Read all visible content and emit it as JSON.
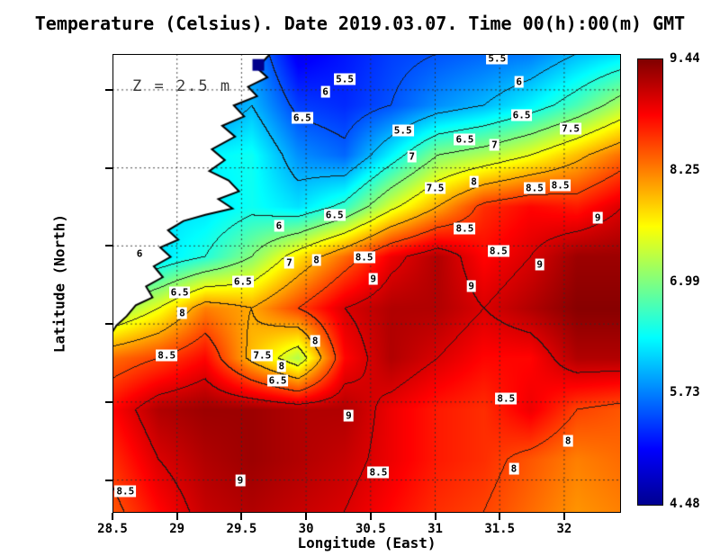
{
  "chart_data": {
    "type": "heatmap",
    "title": "Temperature (Celsius). Date 2019.03.07. Time 00(h):00(m) GMT",
    "annotation": "Z = 2.5 m",
    "xlabel": "Longitude (East)",
    "ylabel": "Latitude (North)",
    "units": "Celsius",
    "xlim": [
      28.5,
      32.44
    ],
    "ylim": [
      42.79,
      45.73
    ],
    "xticks": [
      "28.5",
      "29",
      "29.5",
      "30",
      "30.5",
      "31",
      "31.5",
      "32"
    ],
    "yticks": [
      "45.5",
      "45",
      "44.5",
      "44",
      "43.5",
      "43"
    ],
    "grid_on": true,
    "land_color": "#ffffff",
    "coast_color": "#000000",
    "marker": {
      "lon": 29.63,
      "lat": 45.66,
      "color": "#00008b",
      "size": 13
    },
    "colorbar": {
      "position": "right",
      "ticks": [
        "9.44",
        "8.25",
        "6.99",
        "5.73",
        "4.48"
      ],
      "vmin": 4.48,
      "vmax": 9.44,
      "colormap": [
        {
          "f": 0.0,
          "c": "#000090"
        },
        {
          "f": 0.125,
          "c": "#0000ff"
        },
        {
          "f": 0.375,
          "c": "#00ffff"
        },
        {
          "f": 0.625,
          "c": "#ffff00"
        },
        {
          "f": 0.875,
          "c": "#ff0000"
        },
        {
          "f": 1.0,
          "c": "#800000"
        }
      ]
    },
    "contour_interval": 0.5,
    "contour_levels": [
      5.5,
      6,
      6.5,
      7,
      7.5,
      8,
      8.5,
      9
    ],
    "grid": {
      "lons": [
        28.5,
        28.86,
        29.22,
        29.58,
        29.94,
        30.3,
        30.66,
        31.02,
        31.38,
        31.74,
        32.1,
        32.45
      ],
      "lats": [
        45.73,
        45.4,
        45.08,
        44.75,
        44.43,
        44.1,
        43.78,
        43.45,
        43.13,
        42.8
      ],
      "values": [
        [
          5.5,
          5.5,
          5.5,
          5.8,
          5.0,
          5.2,
          5.4,
          5.5,
          5.6,
          5.7,
          6.0,
          6.2
        ],
        [
          5.6,
          5.6,
          5.6,
          6.0,
          5.4,
          5.3,
          5.5,
          5.8,
          6.0,
          6.3,
          6.7,
          7.2
        ],
        [
          6.3,
          6.3,
          6.3,
          6.4,
          5.8,
          5.6,
          6.3,
          7.0,
          7.2,
          7.5,
          7.9,
          8.3
        ],
        [
          6.2,
          6.2,
          6.2,
          6.4,
          6.2,
          6.6,
          7.4,
          8.0,
          8.6,
          8.8,
          8.7,
          9.0
        ],
        [
          6.0,
          6.2,
          6.5,
          7.0,
          7.7,
          8.3,
          8.9,
          9.2,
          8.8,
          9.0,
          9.3,
          9.3
        ],
        [
          7.0,
          7.5,
          8.2,
          8.0,
          8.5,
          9.0,
          9.2,
          9.2,
          9.0,
          9.2,
          9.4,
          9.4
        ],
        [
          8.3,
          8.5,
          8.8,
          7.9,
          7.2,
          8.8,
          9.2,
          9.0,
          8.8,
          8.8,
          9.2,
          9.2
        ],
        [
          8.8,
          9.2,
          9.3,
          9.3,
          9.2,
          9.2,
          8.9,
          8.7,
          8.6,
          8.9,
          8.5,
          8.4
        ],
        [
          8.6,
          9.0,
          9.2,
          9.3,
          9.2,
          9.1,
          8.9,
          8.7,
          8.6,
          8.4,
          8.2,
          8.3
        ],
        [
          8.4,
          8.8,
          9.1,
          9.2,
          9.1,
          9.0,
          8.8,
          8.6,
          8.5,
          8.3,
          8.1,
          8.2
        ]
      ]
    },
    "contour_labels": [
      {
        "lon": 31.48,
        "lat": 45.7,
        "t": "5.5"
      },
      {
        "lon": 30.3,
        "lat": 45.57,
        "t": "5.5"
      },
      {
        "lon": 30.15,
        "lat": 45.49,
        "t": "6"
      },
      {
        "lon": 31.65,
        "lat": 45.55,
        "t": "6"
      },
      {
        "lon": 31.67,
        "lat": 45.34,
        "t": "6.5"
      },
      {
        "lon": 29.97,
        "lat": 45.32,
        "t": "6.5"
      },
      {
        "lon": 30.75,
        "lat": 45.24,
        "t": "5.5"
      },
      {
        "lon": 32.05,
        "lat": 45.25,
        "t": "7.5"
      },
      {
        "lon": 31.23,
        "lat": 45.18,
        "t": "6.5"
      },
      {
        "lon": 31.46,
        "lat": 45.15,
        "t": "7"
      },
      {
        "lon": 30.82,
        "lat": 45.07,
        "t": "7"
      },
      {
        "lon": 31.0,
        "lat": 44.87,
        "t": "7.5"
      },
      {
        "lon": 31.3,
        "lat": 44.91,
        "t": "8"
      },
      {
        "lon": 31.77,
        "lat": 44.87,
        "t": "8.5"
      },
      {
        "lon": 31.97,
        "lat": 44.89,
        "t": "8.5"
      },
      {
        "lon": 32.26,
        "lat": 44.68,
        "t": "9"
      },
      {
        "lon": 30.22,
        "lat": 44.7,
        "t": "6.5"
      },
      {
        "lon": 29.79,
        "lat": 44.63,
        "t": "6"
      },
      {
        "lon": 31.23,
        "lat": 44.61,
        "t": "8.5"
      },
      {
        "lon": 31.49,
        "lat": 44.47,
        "t": "8.5"
      },
      {
        "lon": 28.71,
        "lat": 44.45,
        "t": "6"
      },
      {
        "lon": 29.87,
        "lat": 44.39,
        "t": "7"
      },
      {
        "lon": 30.08,
        "lat": 44.41,
        "t": "8"
      },
      {
        "lon": 30.45,
        "lat": 44.43,
        "t": "8.5"
      },
      {
        "lon": 31.81,
        "lat": 44.38,
        "t": "9"
      },
      {
        "lon": 29.51,
        "lat": 44.27,
        "t": "6.5"
      },
      {
        "lon": 30.52,
        "lat": 44.29,
        "t": "9"
      },
      {
        "lon": 31.28,
        "lat": 44.24,
        "t": "9"
      },
      {
        "lon": 29.02,
        "lat": 44.2,
        "t": "6.5"
      },
      {
        "lon": 29.04,
        "lat": 44.07,
        "t": "8"
      },
      {
        "lon": 30.07,
        "lat": 43.89,
        "t": "8"
      },
      {
        "lon": 28.92,
        "lat": 43.8,
        "t": "8.5"
      },
      {
        "lon": 29.66,
        "lat": 43.8,
        "t": "7.5"
      },
      {
        "lon": 29.81,
        "lat": 43.73,
        "t": "8"
      },
      {
        "lon": 29.78,
        "lat": 43.64,
        "t": "6.5"
      },
      {
        "lon": 31.55,
        "lat": 43.52,
        "t": "8.5"
      },
      {
        "lon": 30.33,
        "lat": 43.41,
        "t": "9"
      },
      {
        "lon": 32.03,
        "lat": 43.25,
        "t": "8"
      },
      {
        "lon": 29.49,
        "lat": 43.0,
        "t": "9"
      },
      {
        "lon": 30.56,
        "lat": 43.05,
        "t": "8.5"
      },
      {
        "lon": 31.61,
        "lat": 43.07,
        "t": "8"
      },
      {
        "lon": 28.6,
        "lat": 42.93,
        "t": "8.5"
      }
    ],
    "coastline": [
      [
        29.72,
        45.73
      ],
      [
        29.62,
        45.64
      ],
      [
        29.7,
        45.58
      ],
      [
        29.55,
        45.52
      ],
      [
        29.62,
        45.46
      ],
      [
        29.44,
        45.4
      ],
      [
        29.52,
        45.33
      ],
      [
        29.35,
        45.27
      ],
      [
        29.45,
        45.2
      ],
      [
        29.27,
        45.12
      ],
      [
        29.37,
        45.05
      ],
      [
        29.25,
        44.98
      ],
      [
        29.4,
        44.92
      ],
      [
        29.48,
        44.85
      ],
      [
        29.32,
        44.8
      ],
      [
        29.43,
        44.74
      ],
      [
        29.22,
        44.7
      ],
      [
        29.05,
        44.66
      ],
      [
        28.93,
        44.6
      ],
      [
        29.01,
        44.54
      ],
      [
        28.87,
        44.49
      ],
      [
        28.95,
        44.43
      ],
      [
        28.82,
        44.37
      ],
      [
        28.89,
        44.3
      ],
      [
        28.76,
        44.24
      ],
      [
        28.81,
        44.17
      ],
      [
        28.68,
        44.12
      ],
      [
        28.61,
        44.05
      ],
      [
        28.53,
        43.99
      ],
      [
        28.5,
        43.95
      ]
    ]
  }
}
